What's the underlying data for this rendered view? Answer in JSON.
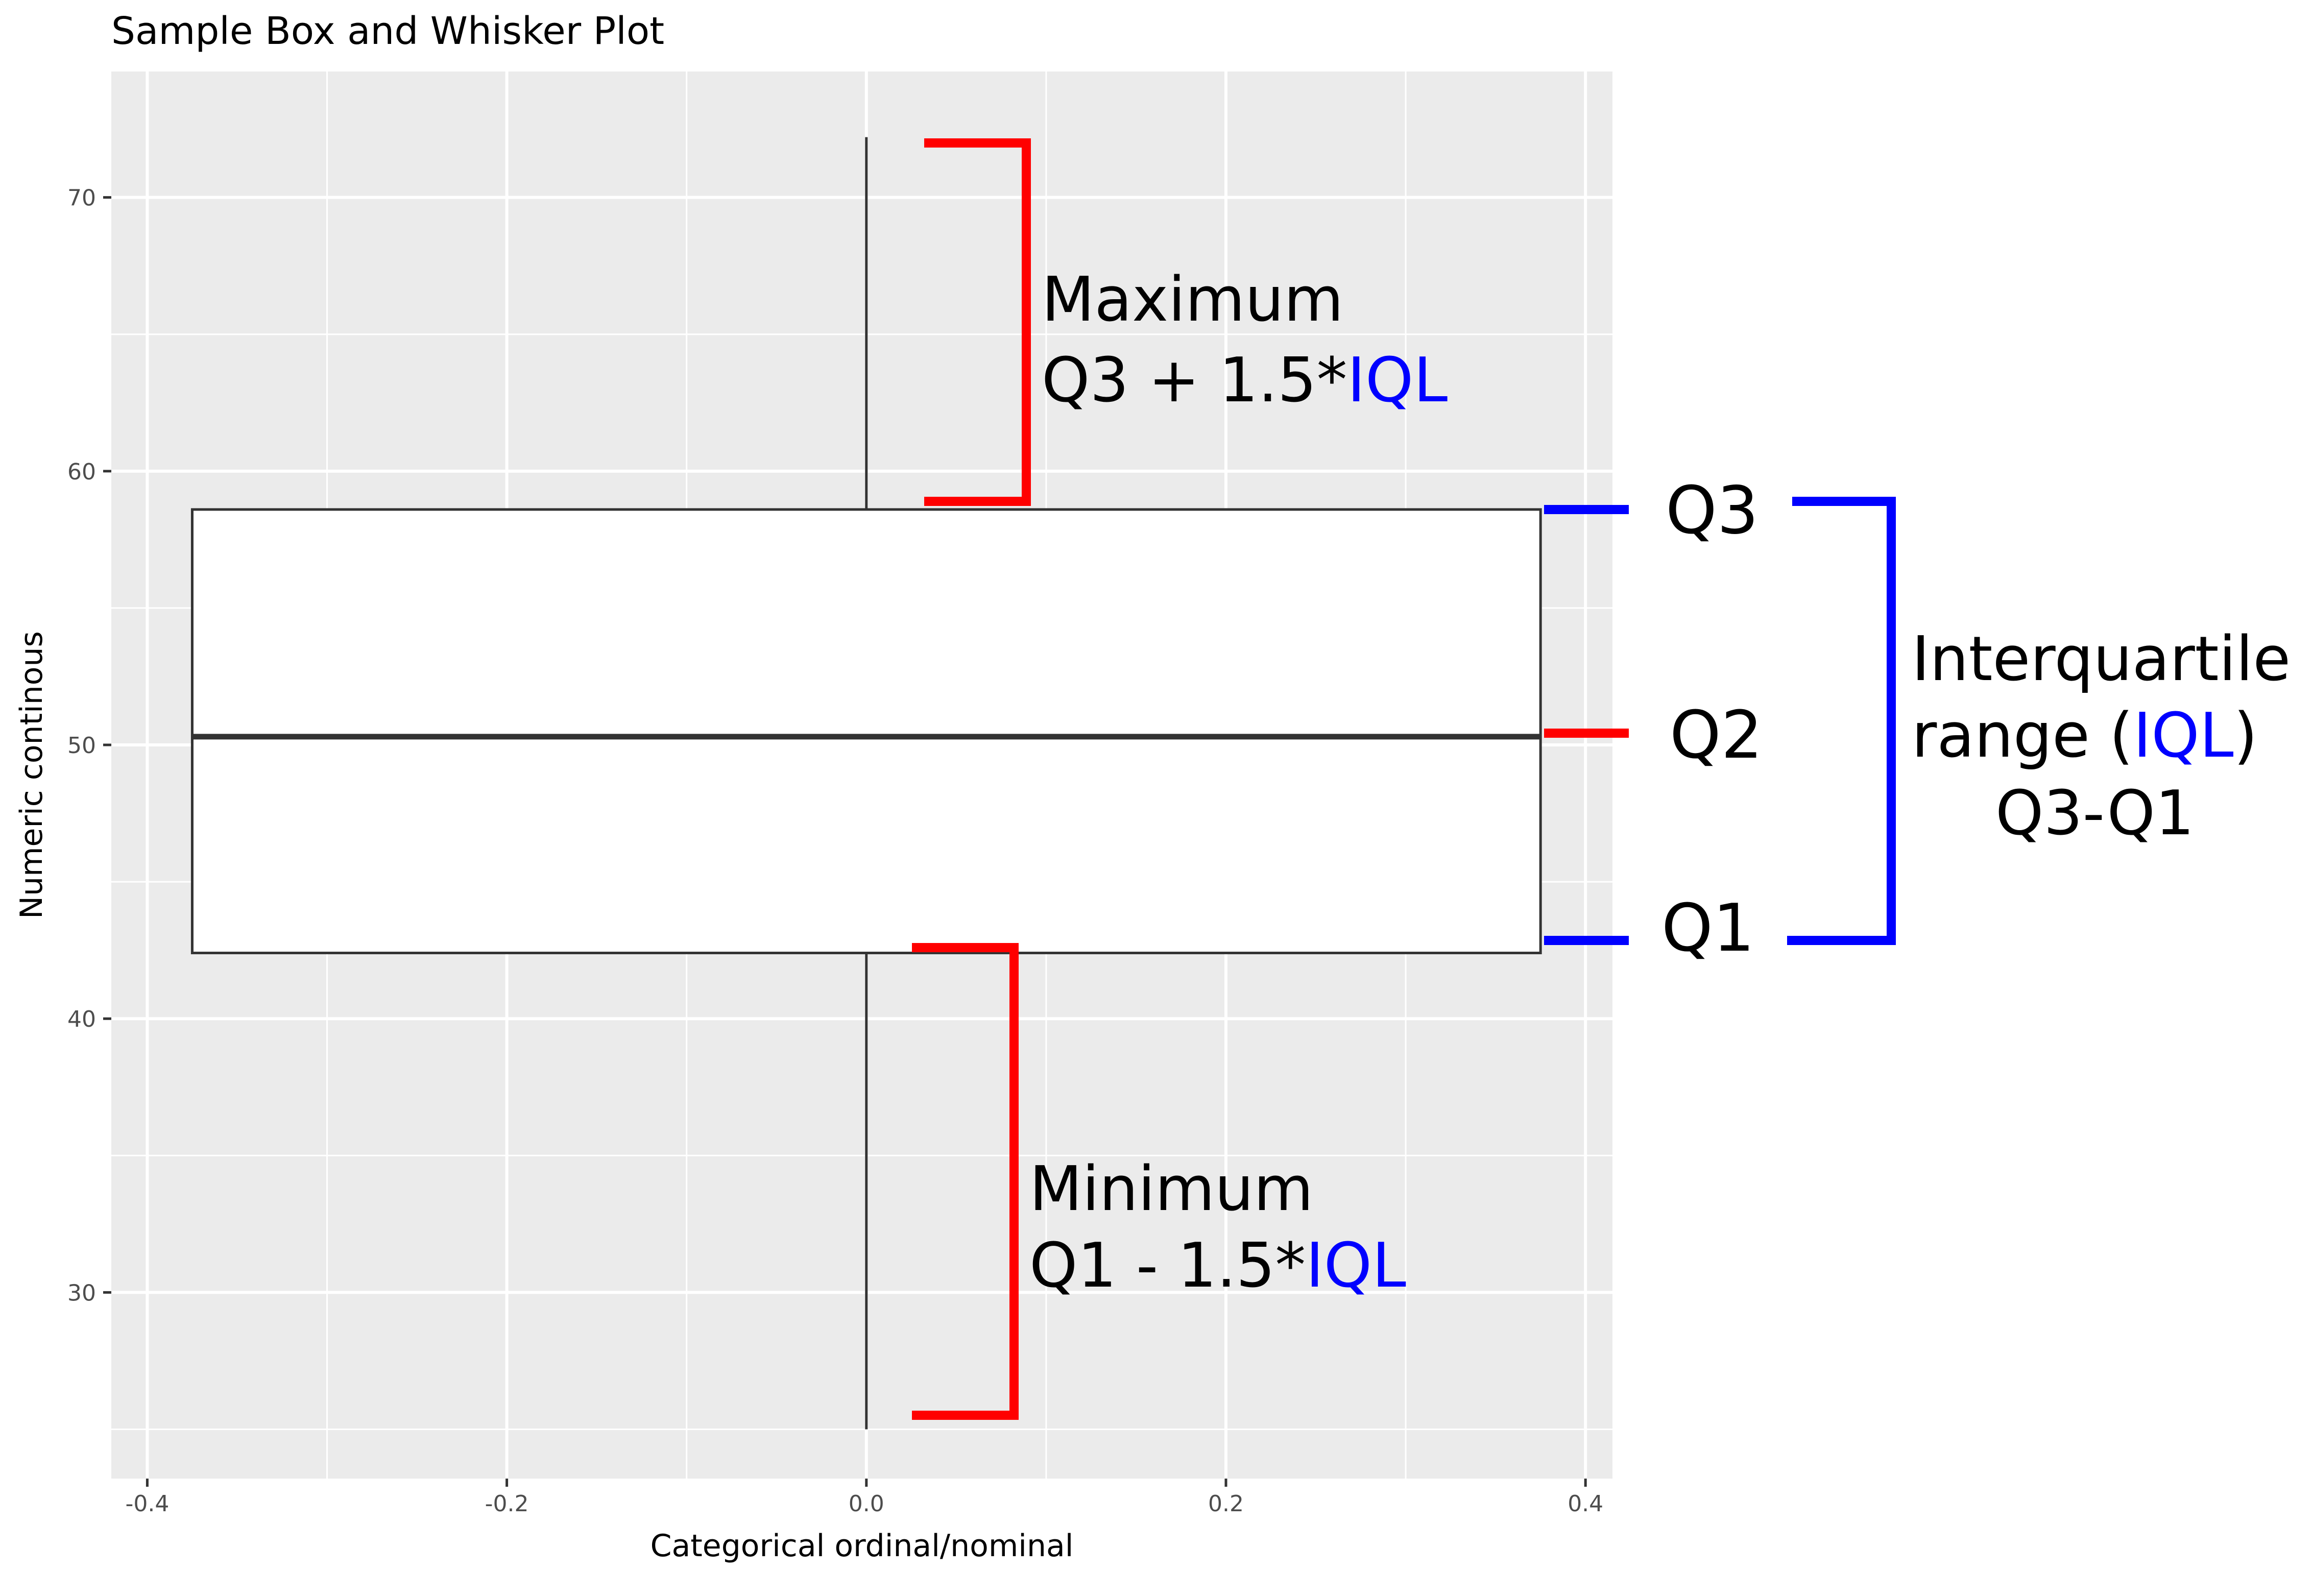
{
  "chart_data": {
    "type": "boxplot",
    "title": "Sample Box and Whisker Plot",
    "xlabel": "Categorical ordinal/nominal",
    "ylabel": "Numeric continous",
    "xlim": [
      -0.42,
      0.415
    ],
    "ylim": [
      23.2,
      74.6
    ],
    "x_ticks": [
      -0.4,
      -0.2,
      0.0,
      0.2,
      0.4
    ],
    "x_tick_labels": [
      "-0.4",
      "-0.2",
      "0.0",
      "0.2",
      "0.4"
    ],
    "y_ticks": [
      30,
      40,
      50,
      60,
      70
    ],
    "y_tick_labels": [
      "30",
      "40",
      "50",
      "60",
      "70"
    ],
    "grid": true,
    "box": {
      "x_center": 0.0,
      "x_left": -0.375,
      "x_right": 0.375,
      "whisker_min": 25.0,
      "q1": 42.4,
      "median": 50.3,
      "q3": 58.6,
      "whisker_max": 72.2
    }
  },
  "annotations": {
    "maximum_label": "Maximum",
    "maximum_formula": "Q3 + 1.5*",
    "maximum_formula_iql": "IQL",
    "minimum_label": "Minimum",
    "minimum_formula": "Q1 - 1.5*",
    "minimum_formula_iql": "IQL",
    "q3_label": "Q3",
    "q2_label": "Q2",
    "q1_label": "Q1",
    "iqr_line1": "Interquartile",
    "iqr_line2_pre": "range (",
    "iqr_line2_iql": "IQL",
    "iqr_line2_post": ")",
    "iqr_line3": "Q3-Q1"
  },
  "colors": {
    "panel_background": "#ebebeb",
    "grid_line": "#ffffff",
    "box_fill": "#ffffff",
    "box_stroke": "#333333",
    "tick_text": "#4d4d4d",
    "tick_mark": "#333333",
    "red_bracket": "#ff0000",
    "blue_bracket": "#0000ff",
    "iql_text": "#0000ff",
    "text": "#000000"
  }
}
